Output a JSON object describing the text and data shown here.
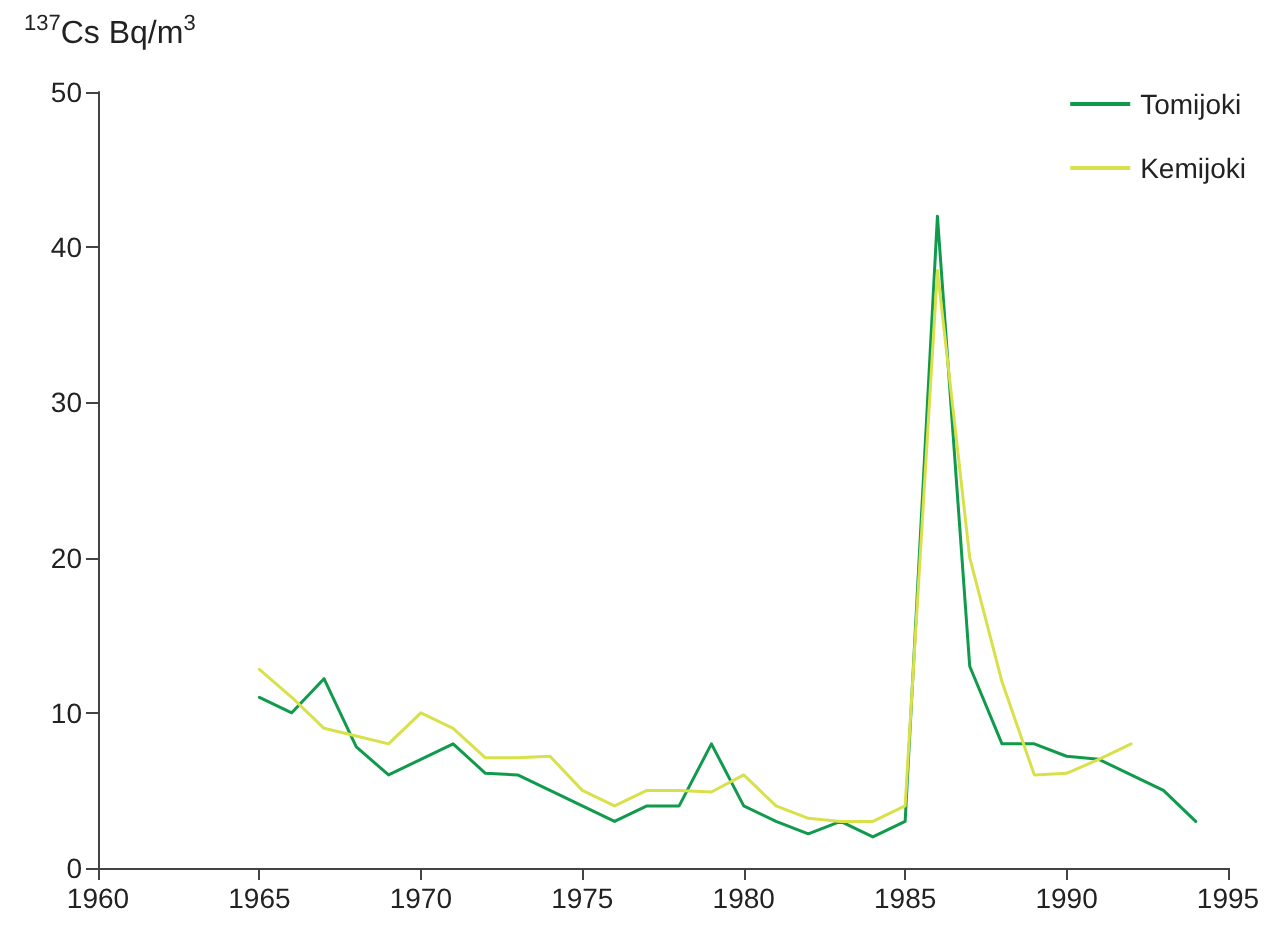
{
  "chart_data": {
    "type": "line",
    "ylabel": "$^{137}$Cs Bq/m$^{3}$",
    "x": [
      1965,
      1966,
      1967,
      1968,
      1969,
      1970,
      1971,
      1972,
      1973,
      1974,
      1975,
      1976,
      1977,
      1978,
      1979,
      1980,
      1981,
      1982,
      1983,
      1984,
      1985,
      1986,
      1987,
      1988,
      1989,
      1990,
      1991,
      1992,
      1993,
      1994
    ],
    "series": [
      {
        "name": "Tomijoki",
        "color": "#109a4c",
        "values": [
          11,
          10,
          12.2,
          7.8,
          6,
          7,
          8,
          6.1,
          6,
          5,
          4,
          3,
          4,
          4,
          8,
          4,
          3,
          2.2,
          3,
          2,
          3,
          42,
          13,
          8,
          8,
          7.2,
          7,
          6,
          5,
          3
        ]
      },
      {
        "name": "Kemijoki",
        "color": "#d8e04a",
        "values": [
          12.8,
          11,
          9,
          8.5,
          8,
          10,
          9,
          7.1,
          7.1,
          7.2,
          5,
          4,
          5,
          5,
          4.9,
          6,
          4,
          3.2,
          3,
          3,
          4,
          38.5,
          20,
          12,
          6,
          6.1,
          7,
          8,
          null,
          null
        ]
      }
    ],
    "xlim": [
      1960,
      1995
    ],
    "xticks": [
      1960,
      1965,
      1970,
      1975,
      1980,
      1985,
      1990,
      1995
    ],
    "ylim": [
      0,
      50
    ],
    "yticks": [
      0,
      10,
      20,
      30,
      40,
      50
    ],
    "grid": false,
    "legend": "top right",
    "marker": "none",
    "line_style": "solid"
  }
}
